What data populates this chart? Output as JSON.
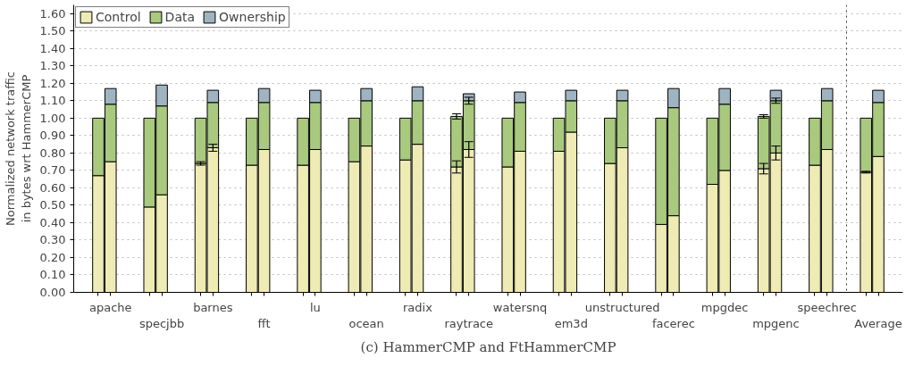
{
  "chart_data": {
    "type": "bar",
    "stacked": true,
    "ylabel": "Normalized network traffic\nin bytes wrt HammerCMP",
    "annotations": [
      "(c) HammerCMP and FtHammerCMP"
    ],
    "categories": [
      null,
      "apache",
      null,
      "specjbb",
      null,
      "barnes",
      null,
      "fft",
      null,
      "lu",
      null,
      "ocean",
      null,
      "radix",
      null,
      "raytrace",
      null,
      "watersnq",
      null,
      "em3d",
      null,
      "unstructured",
      null,
      "facerec",
      null,
      "mpgdec",
      null,
      "mpgenc",
      null,
      "speechrec",
      null,
      "Average"
    ],
    "ylim": [
      0,
      1.65
    ],
    "yticks": [
      {
        "value": 0,
        "label": "0.00"
      },
      {
        "value": 0.1,
        "label": "0.10"
      },
      {
        "value": 0.2,
        "label": "0.20"
      },
      {
        "value": 0.3,
        "label": "0.30"
      },
      {
        "value": 0.4,
        "label": "0.40"
      },
      {
        "value": 0.5,
        "label": "0.50"
      },
      {
        "value": 0.6,
        "label": "0.60"
      },
      {
        "value": 0.7,
        "label": "0.70"
      },
      {
        "value": 0.8,
        "label": "0.80"
      },
      {
        "value": 0.9,
        "label": "0.90"
      },
      {
        "value": 1.0,
        "label": "1.00"
      },
      {
        "value": 1.1,
        "label": "1.10"
      },
      {
        "value": 1.2,
        "label": "1.20"
      },
      {
        "value": 1.3,
        "label": "1.30"
      },
      {
        "value": 1.4,
        "label": "1.40"
      },
      {
        "value": 1.5,
        "label": "1.50"
      },
      {
        "value": 1.6,
        "label": "1.60"
      }
    ],
    "grid": "y",
    "legend": "top left",
    "series": [
      {
        "name": "Control",
        "color": "#eeebb4",
        "values": [
          0.67,
          0.75,
          0.49,
          0.56,
          0.74,
          0.83,
          0.73,
          0.82,
          0.73,
          0.82,
          0.75,
          0.84,
          0.76,
          0.85,
          0.72,
          0.82,
          0.72,
          0.81,
          0.81,
          0.92,
          0.74,
          0.83,
          0.39,
          0.44,
          0.62,
          0.7,
          0.71,
          0.8,
          0.73,
          0.82,
          0.69,
          0.78
        ],
        "errors": [
          null,
          null,
          null,
          null,
          0.01,
          0.02,
          null,
          null,
          null,
          null,
          null,
          null,
          null,
          null,
          0.035,
          0.045,
          null,
          null,
          null,
          null,
          null,
          null,
          null,
          null,
          null,
          null,
          0.03,
          0.04,
          null,
          null,
          0.005,
          null
        ]
      },
      {
        "name": "Data",
        "color": "#a9c97f",
        "values": [
          0.33,
          0.33,
          0.51,
          0.51,
          0.26,
          0.26,
          0.27,
          0.27,
          0.27,
          0.27,
          0.25,
          0.26,
          0.24,
          0.25,
          0.29,
          0.28,
          0.28,
          0.28,
          0.19,
          0.18,
          0.26,
          0.27,
          0.61,
          0.62,
          0.38,
          0.38,
          0.3,
          0.3,
          0.27,
          0.28,
          0.31,
          0.31
        ],
        "errors": [
          null,
          null,
          null,
          null,
          null,
          null,
          null,
          null,
          null,
          null,
          null,
          null,
          null,
          null,
          0.015,
          0.02,
          null,
          null,
          null,
          null,
          null,
          null,
          null,
          null,
          null,
          null,
          0.01,
          0.015,
          null,
          null,
          null,
          null
        ]
      },
      {
        "name": "Ownership",
        "color": "#9fb4c0",
        "values": [
          null,
          0.09,
          null,
          0.12,
          null,
          0.07,
          null,
          0.08,
          null,
          0.07,
          null,
          0.07,
          null,
          0.08,
          null,
          0.04,
          null,
          0.06,
          null,
          0.06,
          null,
          0.06,
          null,
          0.11,
          null,
          0.09,
          null,
          0.06,
          null,
          0.07,
          null,
          0.07
        ]
      }
    ]
  }
}
